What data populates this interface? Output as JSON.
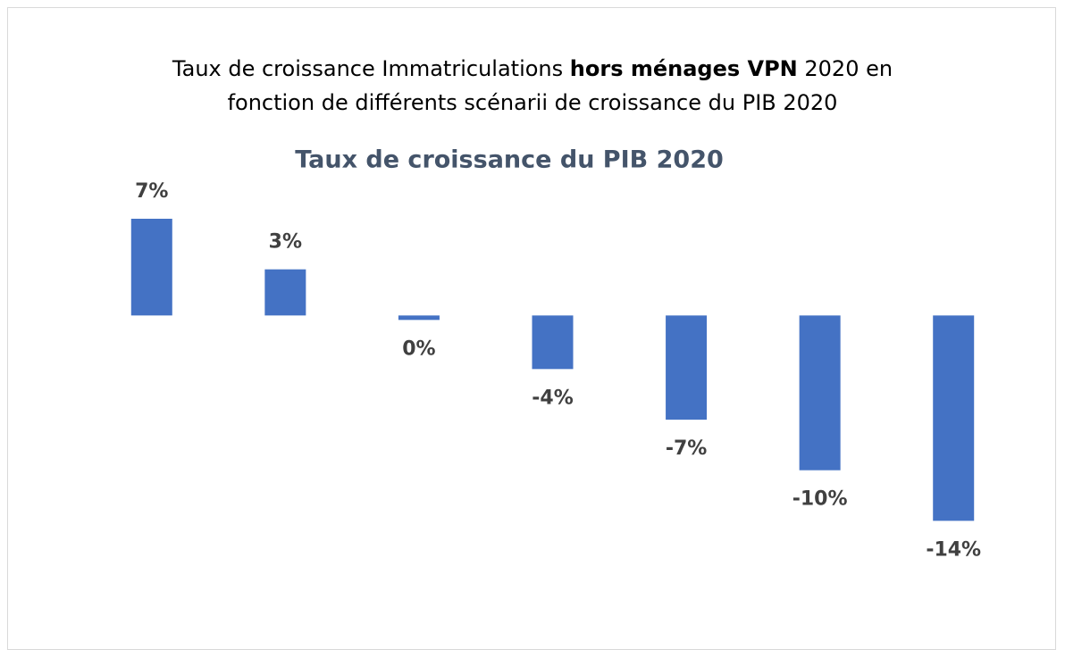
{
  "chart_data": {
    "type": "bar",
    "title": [
      "Taux de croissance Immatriculations",
      "hors ménages VPN",
      "2020 en",
      "fonction de différents scénarii de croissance du PIB 2020"
    ],
    "subtitle": "Taux de croissance du PIB 2020",
    "categories": [
      null,
      null,
      null,
      null,
      null,
      null,
      null
    ],
    "values": [
      6.5,
      3.1,
      -0.3,
      -3.6,
      -7.0,
      -10.4,
      -13.8
    ],
    "value_labels": [
      "7%",
      "3%",
      "0%",
      "-4%",
      "-7%",
      "-10%",
      "-14%"
    ],
    "color": "#4472c4",
    "ylim": [
      -16,
      8
    ]
  }
}
